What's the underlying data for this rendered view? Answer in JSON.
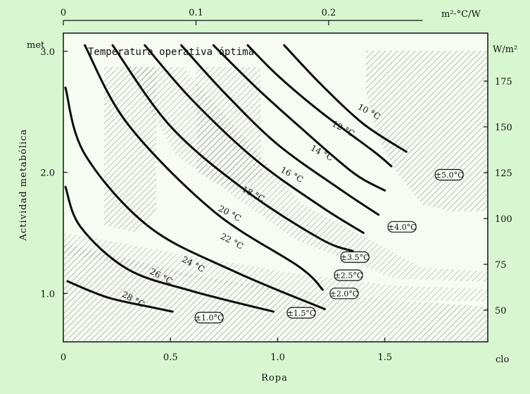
{
  "chart_data": {
    "type": "line",
    "title": "Temperatura operativa óptima",
    "xlabel": "Ropa",
    "ylabel": "Actividad metabólica",
    "x_unit_bottom": "clo",
    "x_unit_top": "m²·°C/W",
    "y_unit_left": "met",
    "y_unit_right": "W/m²",
    "xlim": [
      0,
      1.98
    ],
    "ylim": [
      0.6,
      3.15
    ],
    "grid": false,
    "x_ticks": [
      {
        "v": 0,
        "label": "0"
      },
      {
        "v": 0.5,
        "label": "0.5"
      },
      {
        "v": 1.0,
        "label": "1.0"
      },
      {
        "v": 1.5,
        "label": "1.5"
      }
    ],
    "y_ticks": [
      {
        "v": 1.0,
        "label": "1.0"
      },
      {
        "v": 2.0,
        "label": "2.0"
      },
      {
        "v": 3.0,
        "label": "3.0"
      }
    ],
    "top_ticks": [
      {
        "v": 0,
        "label": "0"
      },
      {
        "v": 0.1,
        "label": "0.1"
      },
      {
        "v": 0.2,
        "label": "0.2"
      }
    ],
    "right_ticks": [
      {
        "v": 50,
        "label": "50"
      },
      {
        "v": 75,
        "label": "75"
      },
      {
        "v": 100,
        "label": "100"
      },
      {
        "v": 125,
        "label": "125"
      },
      {
        "v": 150,
        "label": "150"
      },
      {
        "v": 175,
        "label": "175"
      }
    ],
    "series": [
      {
        "name": "28 °C",
        "x": [
          0.02,
          0.2,
          0.4,
          0.51
        ],
        "y": [
          1.1,
          0.97,
          0.89,
          0.85
        ],
        "label_at": [
          0.32,
          0.93
        ]
      },
      {
        "name": "26 °C",
        "x": [
          0.01,
          0.08,
          0.3,
          0.6,
          0.98
        ],
        "y": [
          1.88,
          1.55,
          1.2,
          1.02,
          0.85
        ],
        "label_at": [
          0.45,
          1.12
        ]
      },
      {
        "name": "24 °C",
        "x": [
          0.01,
          0.1,
          0.4,
          0.8,
          1.22
        ],
        "y": [
          2.7,
          2.15,
          1.55,
          1.18,
          0.87
        ],
        "label_at": [
          0.6,
          1.22
        ]
      },
      {
        "name": "22 °C",
        "x": [
          0.1,
          0.3,
          0.7,
          1.1,
          1.21
        ],
        "y": [
          3.05,
          2.4,
          1.68,
          1.22,
          1.03
        ],
        "label_at": [
          0.78,
          1.41
        ]
      },
      {
        "name": "20 °C",
        "x": [
          0.23,
          0.5,
          0.85,
          1.2,
          1.35
        ],
        "y": [
          3.05,
          2.38,
          1.85,
          1.45,
          1.35
        ],
        "label_at": [
          0.77,
          1.64
        ]
      },
      {
        "name": "18 °C",
        "x": [
          0.38,
          0.6,
          0.9,
          1.2,
          1.4
        ],
        "y": [
          3.05,
          2.6,
          2.1,
          1.72,
          1.5
        ],
        "label_at": [
          0.88,
          1.8
        ]
      },
      {
        "name": "16 °C",
        "x": [
          0.55,
          0.75,
          1.0,
          1.3,
          1.47
        ],
        "y": [
          3.05,
          2.66,
          2.23,
          1.85,
          1.65
        ],
        "label_at": [
          1.06,
          1.96
        ]
      },
      {
        "name": "14 °C",
        "x": [
          0.7,
          0.9,
          1.1,
          1.35,
          1.5
        ],
        "y": [
          3.05,
          2.7,
          2.38,
          2.0,
          1.85
        ],
        "label_at": [
          1.2,
          2.14
        ]
      },
      {
        "name": "12 °C",
        "x": [
          0.86,
          1.0,
          1.2,
          1.45,
          1.53
        ],
        "y": [
          3.05,
          2.8,
          2.5,
          2.17,
          2.05
        ],
        "label_at": [
          1.3,
          2.34
        ]
      },
      {
        "name": "10 °C",
        "x": [
          1.03,
          1.2,
          1.4,
          1.6
        ],
        "y": [
          3.05,
          2.73,
          2.4,
          2.17
        ],
        "label_at": [
          1.42,
          2.48
        ]
      }
    ],
    "tolerance_labels": [
      {
        "label": "±1.0°C",
        "at": [
          0.68,
          0.8
        ]
      },
      {
        "label": "±1.5°C",
        "at": [
          1.11,
          0.84
        ]
      },
      {
        "label": "±2.0°C",
        "at": [
          1.31,
          1.0
        ]
      },
      {
        "label": "±2.5°C",
        "at": [
          1.33,
          1.15
        ]
      },
      {
        "label": "±3.5°C",
        "at": [
          1.36,
          1.3
        ]
      },
      {
        "label": "±4.0°C",
        "at": [
          1.58,
          1.55
        ]
      },
      {
        "label": "±5.0°C",
        "at": [
          1.8,
          1.98
        ]
      }
    ]
  }
}
